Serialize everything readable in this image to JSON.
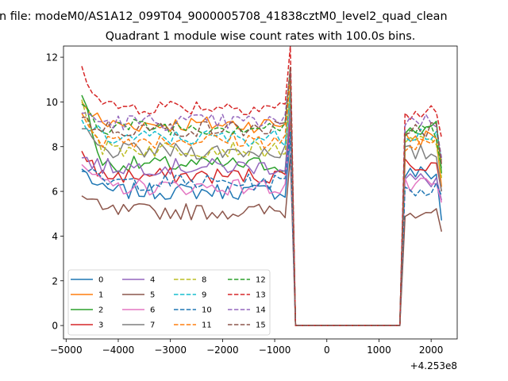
{
  "suptitle": "n file: modeM0/AS1A12_099T04_9000005708_41838cztM0_level2_quad_clean",
  "chart_data": {
    "type": "line",
    "title": "Quadrant 1 module wise count rates with 100.0s bins.",
    "xlabel": "",
    "ylabel": "",
    "offset_text": "+4.253e8",
    "xlim": [
      -5050,
      2500
    ],
    "ylim": [
      -0.6,
      12.5
    ],
    "xticks": [
      -5000,
      -4000,
      -3000,
      -2000,
      -1000,
      0,
      1000,
      2000
    ],
    "xtick_labels": [
      "−5000",
      "−4000",
      "−3000",
      "−2000",
      "−1000",
      "0",
      "1000",
      "2000"
    ],
    "yticks": [
      0,
      2,
      4,
      6,
      8,
      10,
      12
    ],
    "ytick_labels": [
      "0",
      "2",
      "4",
      "6",
      "8",
      "10",
      "12"
    ],
    "grid": false,
    "legend_position": "lower-left",
    "x_segments": {
      "seg1": [
        -4700,
        -600,
        100
      ],
      "gap": [
        -600,
        1400
      ],
      "seg2": [
        1400,
        2200,
        100
      ]
    },
    "series": [
      {
        "name": "0",
        "color": "#1f77b4",
        "dash": false,
        "mean1": 6.0,
        "mean2": 6.8,
        "start": 7.0,
        "end": 4.7
      },
      {
        "name": "1",
        "color": "#ff7f0e",
        "dash": false,
        "mean1": 9.0,
        "mean2": 8.4,
        "start": 10.0,
        "end": 6.2
      },
      {
        "name": "2",
        "color": "#2ca02c",
        "dash": false,
        "mean1": 7.2,
        "mean2": 8.8,
        "start": 10.3,
        "end": 6.8
      },
      {
        "name": "3",
        "color": "#d62728",
        "dash": false,
        "mean1": 6.7,
        "mean2": 7.2,
        "start": 7.8,
        "end": 6.0
      },
      {
        "name": "4",
        "color": "#9467bd",
        "dash": false,
        "mean1": 7.1,
        "mean2": 6.5,
        "start": 7.5,
        "end": 5.6
      },
      {
        "name": "5",
        "color": "#8c564b",
        "dash": false,
        "mean1": 5.1,
        "mean2": 5.2,
        "start": 5.8,
        "end": 4.2
      },
      {
        "name": "6",
        "color": "#e377c2",
        "dash": false,
        "mean1": 6.2,
        "mean2": 6.2,
        "start": 7.2,
        "end": 5.5
      },
      {
        "name": "7",
        "color": "#7f7f7f",
        "dash": false,
        "mean1": 7.8,
        "mean2": 7.7,
        "start": 8.8,
        "end": 6.0
      },
      {
        "name": "8",
        "color": "#bcbd22",
        "dash": true,
        "mean1": 7.9,
        "mean2": 8.2,
        "start": 10.1,
        "end": 6.6
      },
      {
        "name": "9",
        "color": "#17becf",
        "dash": true,
        "mean1": 8.4,
        "mean2": 8.6,
        "start": 9.2,
        "end": 7.4
      },
      {
        "name": "10",
        "color": "#1f77b4",
        "dash": true,
        "mean1": 6.4,
        "mean2": 6.1,
        "start": 6.9,
        "end": 5.8
      },
      {
        "name": "11",
        "color": "#ff7f0e",
        "dash": true,
        "mean1": 8.3,
        "mean2": 8.0,
        "start": 9.5,
        "end": 7.3
      },
      {
        "name": "12",
        "color": "#2ca02c",
        "dash": true,
        "mean1": 8.9,
        "mean2": 8.7,
        "start": 9.9,
        "end": 7.0
      },
      {
        "name": "13",
        "color": "#d62728",
        "dash": true,
        "mean1": 9.8,
        "mean2": 9.5,
        "start": 11.6,
        "end": 8.4
      },
      {
        "name": "14",
        "color": "#9467bd",
        "dash": true,
        "mean1": 9.1,
        "mean2": 9.2,
        "start": 9.5,
        "end": 7.5
      },
      {
        "name": "15",
        "color": "#8c564b",
        "dash": true,
        "mean1": 8.8,
        "mean2": 8.8,
        "start": 9.3,
        "end": 7.2
      }
    ]
  }
}
